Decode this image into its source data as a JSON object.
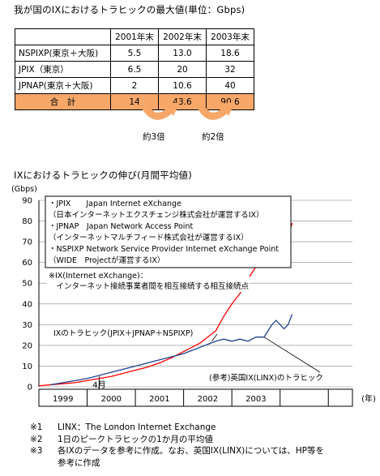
{
  "title1": "我が国のIXにおけるトラヒックの最大値(単位：Gbps)",
  "table": {
    "headers": [
      "",
      "2001年末",
      "2002年末",
      "2003年末"
    ],
    "rows": [
      {
        "label": "NSPIXP(東京＋大阪)",
        "values": [
          "5.5",
          "13.0",
          "18.6"
        ]
      },
      {
        "label": "JPIX（東京）",
        "values": [
          "6.5",
          "20",
          "32"
        ]
      },
      {
        "label": "JPNAP(東京＋大阪)",
        "values": [
          "2",
          "10.6",
          "40"
        ]
      }
    ],
    "total": {
      "label": "合　計",
      "values": [
        "14",
        "43.6",
        "90.6"
      ]
    }
  },
  "ratios": [
    "約3倍",
    "約2倍"
  ],
  "title2": "IXにおけるトラヒックの伸び(月間平均値)",
  "legend_lines": [
    "・JPIX　　Japan Internet eXchange",
    "（日本インターネットエクスチェンジ株式会社が運営するIX）",
    "・JPNAP　Japan Network Access Point",
    "（インターネットマルチフィード株式会社が運営するIX）",
    "・NSPIXP Network Service Provider Internet eXchange Point",
    "（WIDE　Projectが運営するIX）"
  ],
  "ix_note": [
    "※IX(Internet eXchange)：",
    "　インターネット接続事業者間を相互接続する相互接続点"
  ],
  "notes": [
    {
      "k": "※1",
      "t": "LINX：The London Internet Exchange"
    },
    {
      "k": "※2",
      "t": "1日のピークトラヒックの1か月の平均値"
    },
    {
      "k": "※3",
      "t": "各IXのデータを参考に作成。なお、英国IX(LINX)については、HP等を"
    },
    {
      "k": "",
      "t": "参考に作成"
    }
  ],
  "colors": {
    "japan": "#ff0000",
    "linx": "#1f3f8f",
    "total_bg": "#f7a768",
    "arrow": "#f7a768"
  },
  "chart_data": {
    "type": "line",
    "ylabel": "(Gbps)",
    "xlabel": "(年)",
    "ylim": [
      0,
      90
    ],
    "yticks": [
      0,
      10,
      20,
      30,
      40,
      50,
      60,
      70,
      80,
      90
    ],
    "year_labels": [
      "1999",
      "2000",
      "2001",
      "2002",
      "2003"
    ],
    "month_marker": "4月",
    "x_units": "months since Jan 1999",
    "series": [
      {
        "name": "IXのトラヒック(JPIX＋JPNAP＋NSPIXP)",
        "x": [
          0,
          3,
          6,
          9,
          12,
          15,
          18,
          21,
          24,
          27,
          30,
          33,
          36,
          38,
          40,
          42,
          44,
          46,
          48,
          50,
          52,
          54,
          56,
          58,
          59,
          60,
          61,
          62,
          63
        ],
        "y": [
          0.5,
          1,
          1.5,
          2,
          3,
          4,
          5,
          6.5,
          8,
          9.5,
          11.5,
          14,
          17,
          19,
          21,
          24,
          27,
          34,
          40,
          45,
          52,
          58,
          66,
          70,
          78,
          82,
          81,
          73,
          79
        ]
      },
      {
        "name": "(参考)英国IX(LINX)のトラヒック",
        "x": [
          3,
          6,
          9,
          12,
          15,
          18,
          21,
          24,
          27,
          30,
          33,
          36,
          38,
          40,
          42,
          44,
          46,
          48,
          50,
          52,
          54,
          56,
          57,
          58,
          59,
          60,
          61,
          62,
          63
        ],
        "y": [
          1,
          2,
          3,
          4,
          5.5,
          7,
          8.5,
          10,
          11.5,
          13,
          14.5,
          16,
          17.5,
          19,
          20.5,
          22,
          23,
          22,
          23,
          22,
          24,
          24,
          27,
          30,
          32,
          30,
          28,
          30,
          35
        ]
      }
    ],
    "annotations": [
      "IXのトラヒック(JPIX＋JPNAP＋NSPIXP)",
      "(参考)英国IX(LINX)のトラヒック"
    ]
  }
}
